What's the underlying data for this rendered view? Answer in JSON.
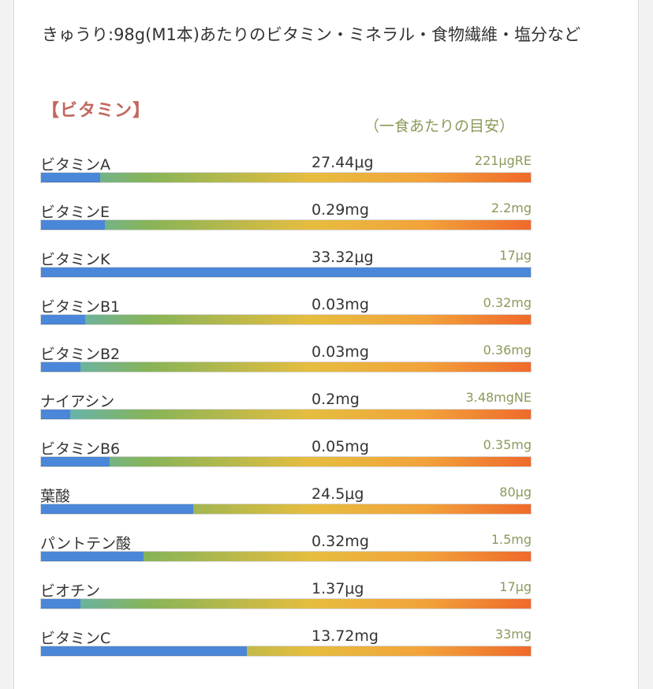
{
  "heading": "きゅうり:98g(M1本)あたりのビタミン・ミネラル・食物繊維・塩分など",
  "section_title": "【ビタミン】",
  "guide_caption": "（一食あたりの目安）",
  "nutrients": [
    {
      "name": "ビタミンA",
      "amount": "27.44μg",
      "target": "221μgRE",
      "fill_percent": 12
    },
    {
      "name": "ビタミンE",
      "amount": "0.29mg",
      "target": "2.2mg",
      "fill_percent": 13
    },
    {
      "name": "ビタミンK",
      "amount": "33.32μg",
      "target": "17μg",
      "fill_percent": 100
    },
    {
      "name": "ビタミンB1",
      "amount": "0.03mg",
      "target": "0.32mg",
      "fill_percent": 9
    },
    {
      "name": "ビタミンB2",
      "amount": "0.03mg",
      "target": "0.36mg",
      "fill_percent": 8
    },
    {
      "name": "ナイアシン",
      "amount": "0.2mg",
      "target": "3.48mgNE",
      "fill_percent": 6
    },
    {
      "name": "ビタミンB6",
      "amount": "0.05mg",
      "target": "0.35mg",
      "fill_percent": 14
    },
    {
      "name": "葉酸",
      "amount": "24.5μg",
      "target": "80μg",
      "fill_percent": 31
    },
    {
      "name": "パントテン酸",
      "amount": "0.32mg",
      "target": "1.5mg",
      "fill_percent": 21
    },
    {
      "name": "ビオチン",
      "amount": "1.37μg",
      "target": "17μg",
      "fill_percent": 8
    },
    {
      "name": "ビタミンC",
      "amount": "13.72mg",
      "target": "33mg",
      "fill_percent": 42
    }
  ],
  "colors": {
    "bar_fill": "#4a87d8",
    "section_title": "#c2675f",
    "target_text": "#8a9a5a"
  }
}
